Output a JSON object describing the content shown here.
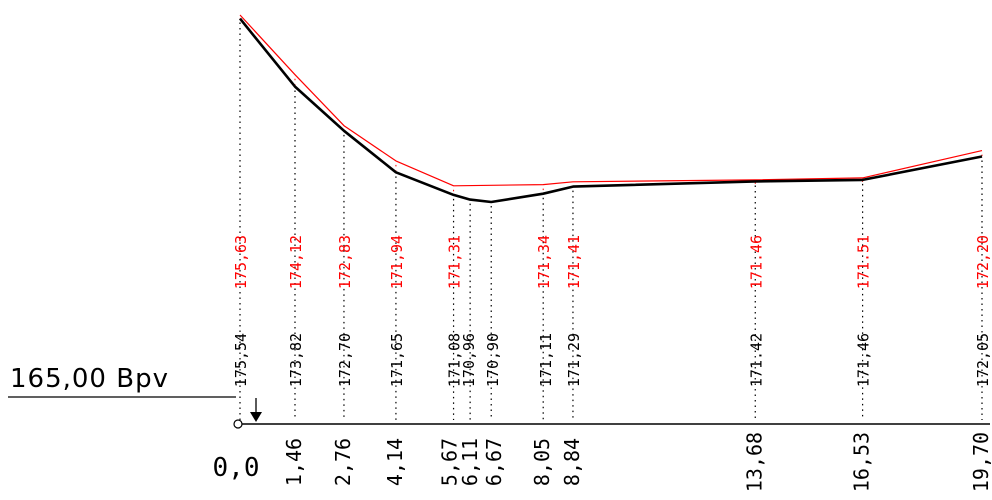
{
  "datum": {
    "label": "165,00 Bpv",
    "value": 165.0
  },
  "chart_data": {
    "type": "line",
    "title": "",
    "xlabel": "",
    "ylabel": "",
    "x_tick_labels": [
      "0,0",
      "1,46",
      "2,76",
      "4,14",
      "5,67",
      "6,11",
      "6,67",
      "8,05",
      "8,84",
      "13,68",
      "16,53",
      "19,70"
    ],
    "series": [
      {
        "color": "#ff0000",
        "x": [
          0.0,
          1.46,
          2.76,
          4.14,
          5.67,
          8.05,
          8.84,
          13.68,
          16.53,
          19.7
        ],
        "values": [
          175.63,
          174.12,
          172.83,
          171.94,
          171.31,
          171.34,
          171.41,
          171.46,
          171.51,
          172.2
        ],
        "labels": [
          "175,63",
          "174,12",
          "172,83",
          "171,94",
          "171,31",
          "171,34",
          "171,41",
          "171.46",
          "171.51",
          "172,20"
        ]
      },
      {
        "color": "#000000",
        "x": [
          0.0,
          1.46,
          2.76,
          4.14,
          5.67,
          6.11,
          6.67,
          8.05,
          8.84,
          13.68,
          16.53,
          19.7
        ],
        "values": [
          175.54,
          173.82,
          172.7,
          171.65,
          171.08,
          170.96,
          170.9,
          171.11,
          171.29,
          171.42,
          171.46,
          172.05
        ],
        "labels": [
          "175,54",
          "173,82",
          "172,70",
          "171,65",
          "171,08",
          "170,96",
          "170,90",
          "171,11",
          "171,29",
          "171.42",
          "171,46",
          "172,05"
        ]
      }
    ]
  }
}
